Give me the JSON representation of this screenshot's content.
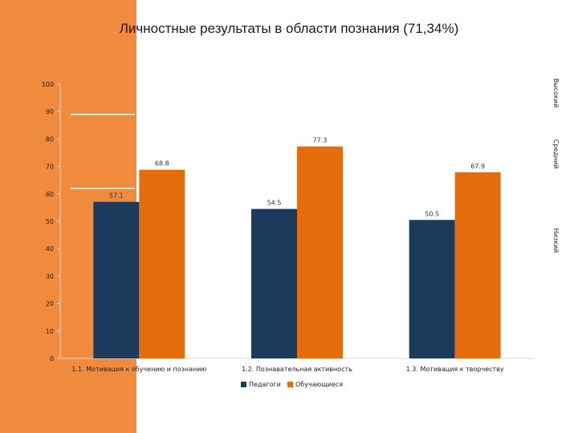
{
  "chart_data": {
    "type": "bar",
    "title": "Личностные результаты в области познания (71,34%)",
    "categories": [
      "1.1. Мотивация к обучению и познанию",
      "1.2. Познавательная активность",
      "1.3. Мотивация к творчеству"
    ],
    "series": [
      {
        "name": "Педагоги",
        "values": [
          57.1,
          54.5,
          50.5
        ],
        "color": "#1b3a5c"
      },
      {
        "name": "Обучающиеся",
        "values": [
          68.8,
          77.3,
          67.9
        ],
        "color": "#e46c0a"
      }
    ],
    "data_labels": [
      [
        "57.1",
        "54.5",
        "50.5"
      ],
      [
        "68.8",
        "77.3",
        "67.9"
      ]
    ],
    "ylim": [
      0,
      100
    ],
    "yticks": [
      0,
      10,
      20,
      30,
      40,
      50,
      60,
      70,
      80,
      90,
      100
    ],
    "level_labels": [
      "Высокий",
      "Средний",
      "Низкий"
    ],
    "level_lines": [
      89,
      62
    ],
    "legend_position": "bottom"
  }
}
